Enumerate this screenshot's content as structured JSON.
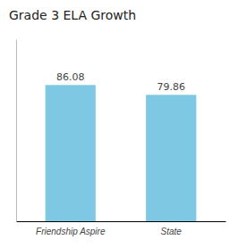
{
  "chart_data": {
    "type": "bar",
    "title": "Grade 3 ELA Growth",
    "categories": [
      "Friendship Aspire",
      "State"
    ],
    "values": [
      86.08,
      79.86
    ],
    "color": "#7EC8E3",
    "ylim": [
      0,
      115
    ],
    "data_labels": true,
    "tick_labels": "x"
  }
}
